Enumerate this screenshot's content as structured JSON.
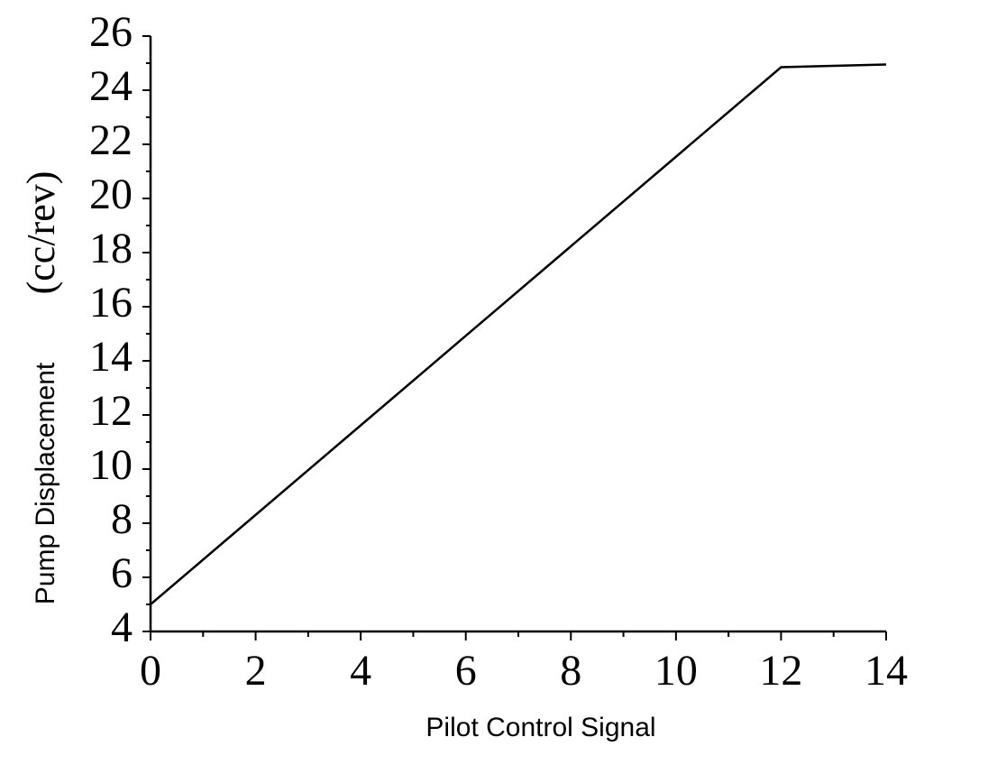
{
  "chart_data": {
    "type": "line",
    "xlabel": "Pilot Control Signal",
    "ylabel": "Pump Displacement",
    "ylabel_unit": "(cc/rev)",
    "x": [
      0,
      12,
      14
    ],
    "series": [
      {
        "color": "#000000",
        "values": [
          5,
          24.85,
          24.95
        ]
      }
    ],
    "xlim": [
      0,
      14
    ],
    "xticks": [
      0,
      2,
      4,
      6,
      8,
      10,
      12,
      14
    ],
    "ylim": [
      4,
      26
    ],
    "yticks": [
      4,
      6,
      8,
      10,
      12,
      14,
      16,
      18,
      20,
      22,
      24,
      26
    ],
    "grid": false
  }
}
